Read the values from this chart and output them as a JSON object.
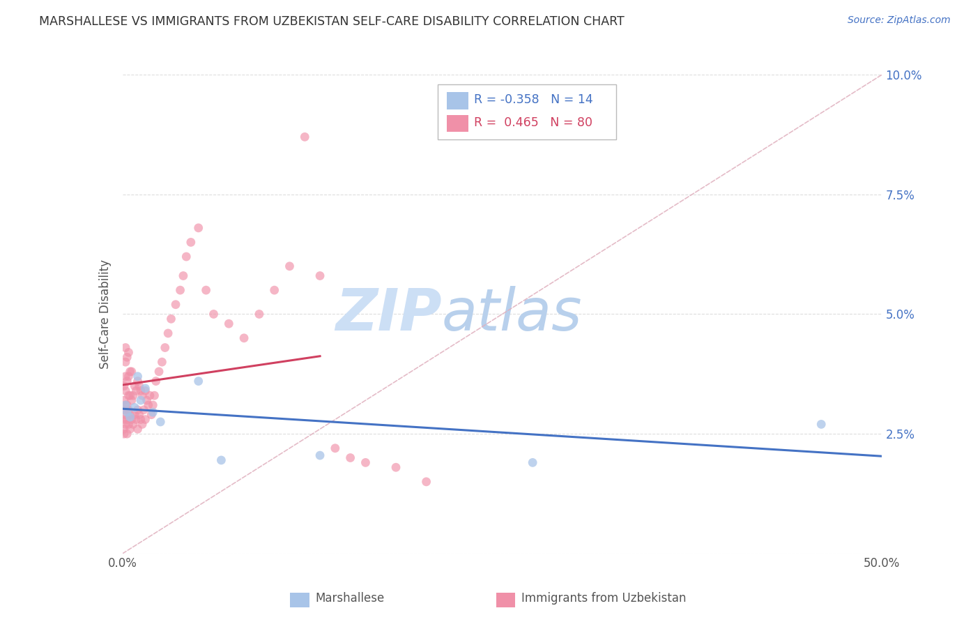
{
  "title": "MARSHALLESE VS IMMIGRANTS FROM UZBEKISTAN SELF-CARE DISABILITY CORRELATION CHART",
  "source": "Source: ZipAtlas.com",
  "xlabel_marshallese": "Marshallese",
  "xlabel_uzbekistan": "Immigrants from Uzbekistan",
  "ylabel": "Self-Care Disability",
  "xlim": [
    0.0,
    0.5
  ],
  "ylim": [
    0.0,
    0.1
  ],
  "marshallese_R": -0.358,
  "marshallese_N": 14,
  "uzbekistan_R": 0.465,
  "uzbekistan_N": 80,
  "marshallese_color": "#a8c4e8",
  "uzbekistan_color": "#f090a8",
  "trend_marshallese_color": "#4472c4",
  "trend_uzbekistan_color": "#d04060",
  "diagonal_color": "#e0b0be",
  "watermark_zip_color": "#c8d8f0",
  "watermark_atlas_color": "#b0c8e8",
  "legend_edge_color": "#bbbbbb",
  "grid_color": "#dddddd",
  "title_color": "#333333",
  "source_color": "#4472c4",
  "ylabel_color": "#555555",
  "tick_color": "#555555",
  "right_tick_color": "#4472c4",
  "marshallese_x": [
    0.002,
    0.003,
    0.005,
    0.008,
    0.01,
    0.012,
    0.015,
    0.02,
    0.025,
    0.05,
    0.065,
    0.13,
    0.27,
    0.46
  ],
  "marshallese_y": [
    0.031,
    0.0295,
    0.0285,
    0.0305,
    0.037,
    0.032,
    0.0345,
    0.0295,
    0.0275,
    0.036,
    0.0195,
    0.0205,
    0.019,
    0.027
  ],
  "uzbekistan_x": [
    0.001,
    0.001,
    0.001,
    0.001,
    0.001,
    0.001,
    0.002,
    0.002,
    0.002,
    0.002,
    0.002,
    0.002,
    0.002,
    0.003,
    0.003,
    0.003,
    0.003,
    0.003,
    0.004,
    0.004,
    0.004,
    0.004,
    0.004,
    0.005,
    0.005,
    0.005,
    0.005,
    0.006,
    0.006,
    0.006,
    0.007,
    0.007,
    0.008,
    0.008,
    0.009,
    0.009,
    0.01,
    0.01,
    0.01,
    0.011,
    0.011,
    0.012,
    0.012,
    0.013,
    0.013,
    0.014,
    0.015,
    0.015,
    0.016,
    0.017,
    0.018,
    0.019,
    0.02,
    0.021,
    0.022,
    0.024,
    0.026,
    0.028,
    0.03,
    0.032,
    0.035,
    0.038,
    0.04,
    0.042,
    0.045,
    0.05,
    0.055,
    0.06,
    0.07,
    0.08,
    0.09,
    0.1,
    0.11,
    0.12,
    0.13,
    0.14,
    0.15,
    0.16,
    0.18,
    0.2
  ],
  "uzbekistan_y": [
    0.025,
    0.026,
    0.028,
    0.03,
    0.032,
    0.035,
    0.027,
    0.029,
    0.031,
    0.034,
    0.037,
    0.04,
    0.043,
    0.025,
    0.028,
    0.031,
    0.036,
    0.041,
    0.027,
    0.03,
    0.033,
    0.037,
    0.042,
    0.026,
    0.029,
    0.033,
    0.038,
    0.028,
    0.032,
    0.038,
    0.027,
    0.033,
    0.029,
    0.035,
    0.028,
    0.034,
    0.026,
    0.03,
    0.036,
    0.029,
    0.035,
    0.028,
    0.034,
    0.027,
    0.033,
    0.03,
    0.028,
    0.034,
    0.032,
    0.031,
    0.033,
    0.029,
    0.031,
    0.033,
    0.036,
    0.038,
    0.04,
    0.043,
    0.046,
    0.049,
    0.052,
    0.055,
    0.058,
    0.062,
    0.065,
    0.068,
    0.055,
    0.05,
    0.048,
    0.045,
    0.05,
    0.055,
    0.06,
    0.087,
    0.058,
    0.022,
    0.02,
    0.019,
    0.018,
    0.015
  ]
}
